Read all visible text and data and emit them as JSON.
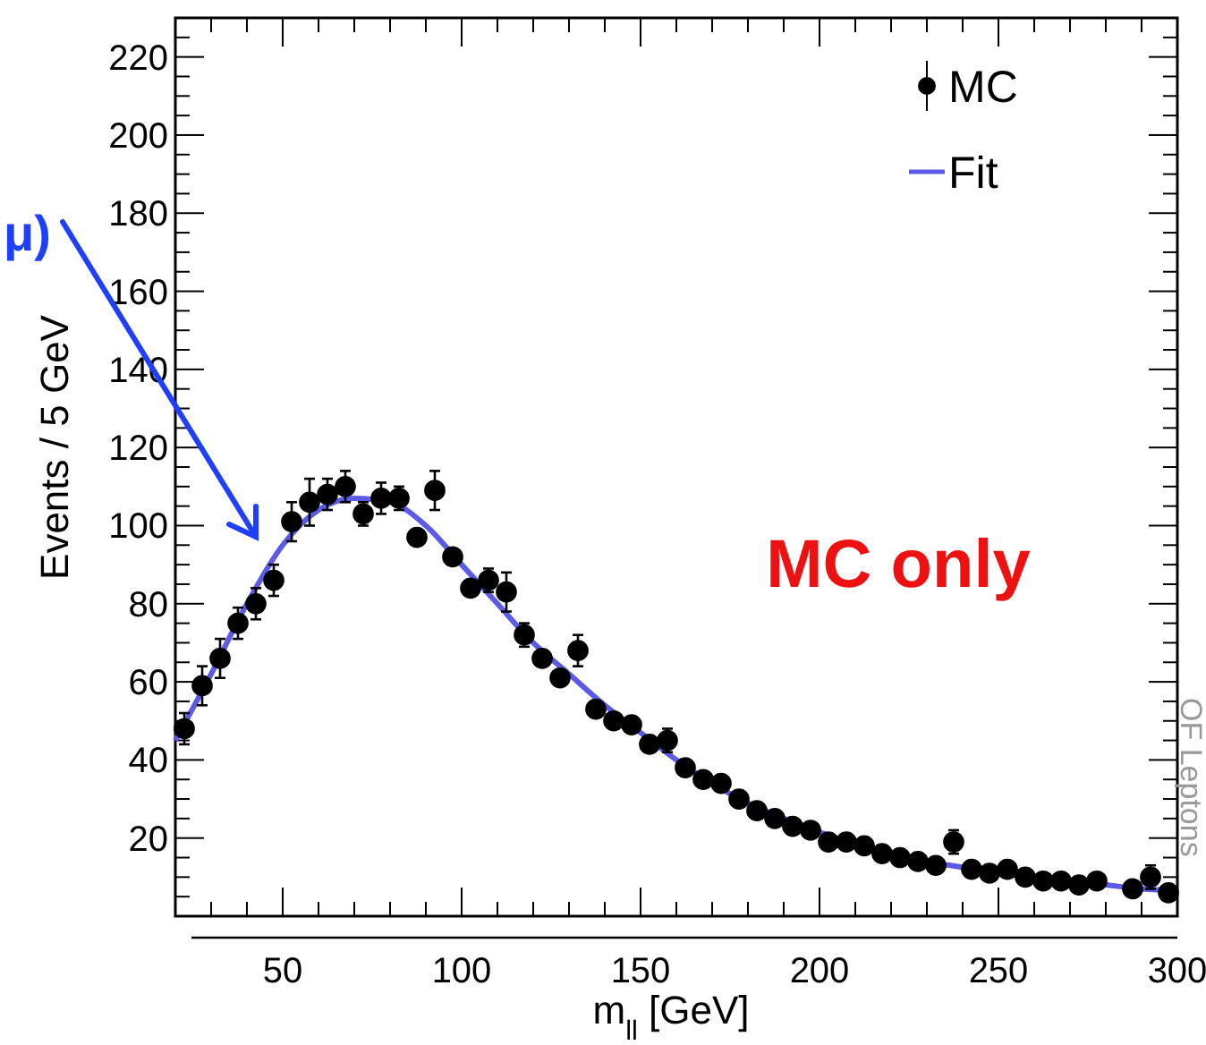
{
  "chart_data": {
    "type": "scatter",
    "xlabel": "m$_{ll}$ [GeV]",
    "ylabel": "Events / 5 GeV",
    "annotations": [
      "MC only",
      "OF Leptons",
      "μ)"
    ],
    "xlim": [
      20,
      300
    ],
    "ylim": [
      0,
      230
    ],
    "xticks": [
      {
        "value": 20,
        "label": null
      },
      {
        "value": 30,
        "label": null
      },
      {
        "value": 40,
        "label": null
      },
      50,
      {
        "value": 60,
        "label": null
      },
      {
        "value": 70,
        "label": null
      },
      {
        "value": 80,
        "label": null
      },
      {
        "value": 90,
        "label": null
      },
      100,
      {
        "value": 110,
        "label": null
      },
      {
        "value": 120,
        "label": null
      },
      {
        "value": 130,
        "label": null
      },
      {
        "value": 140,
        "label": null
      },
      150,
      {
        "value": 160,
        "label": null
      },
      {
        "value": 170,
        "label": null
      },
      {
        "value": 180,
        "label": null
      },
      {
        "value": 190,
        "label": null
      },
      200,
      {
        "value": 210,
        "label": null
      },
      {
        "value": 220,
        "label": null
      },
      {
        "value": 230,
        "label": null
      },
      {
        "value": 240,
        "label": null
      },
      250,
      {
        "value": 260,
        "label": null
      },
      {
        "value": 270,
        "label": null
      },
      {
        "value": 280,
        "label": null
      },
      {
        "value": 290,
        "label": null
      },
      300
    ],
    "yticks": [
      {
        "value": 5,
        "label": null
      },
      {
        "value": 10,
        "label": null
      },
      {
        "value": 15,
        "label": null
      },
      20,
      {
        "value": 25,
        "label": null
      },
      {
        "value": 30,
        "label": null
      },
      {
        "value": 35,
        "label": null
      },
      40,
      {
        "value": 45,
        "label": null
      },
      {
        "value": 50,
        "label": null
      },
      {
        "value": 55,
        "label": null
      },
      60,
      {
        "value": 65,
        "label": null
      },
      {
        "value": 70,
        "label": null
      },
      {
        "value": 75,
        "label": null
      },
      80,
      {
        "value": 85,
        "label": null
      },
      {
        "value": 90,
        "label": null
      },
      {
        "value": 95,
        "label": null
      },
      100,
      {
        "value": 105,
        "label": null
      },
      {
        "value": 110,
        "label": null
      },
      {
        "value": 115,
        "label": null
      },
      120,
      {
        "value": 125,
        "label": null
      },
      {
        "value": 130,
        "label": null
      },
      {
        "value": 135,
        "label": null
      },
      140,
      {
        "value": 145,
        "label": null
      },
      {
        "value": 150,
        "label": null
      },
      {
        "value": 155,
        "label": null
      },
      160,
      {
        "value": 165,
        "label": null
      },
      {
        "value": 170,
        "label": null
      },
      {
        "value": 175,
        "label": null
      },
      180,
      {
        "value": 185,
        "label": null
      },
      {
        "value": 190,
        "label": null
      },
      {
        "value": 195,
        "label": null
      },
      200,
      {
        "value": 205,
        "label": null
      },
      {
        "value": 210,
        "label": null
      },
      {
        "value": 215,
        "label": null
      },
      220,
      {
        "value": 225,
        "label": null
      }
    ],
    "legend": "top right",
    "grid": false,
    "series": [
      {
        "name": "MC",
        "marker": "circle",
        "color": "#000000",
        "x": [
          22.5,
          27.5,
          32.5,
          37.5,
          42.5,
          47.5,
          52.5,
          57.5,
          62.5,
          67.5,
          72.5,
          77.5,
          82.5,
          87.5,
          92.5,
          97.5,
          102.5,
          107.5,
          112.5,
          117.5,
          122.5,
          127.5,
          132.5,
          137.5,
          142.5,
          147.5,
          152.5,
          157.5,
          162.5,
          167.5,
          172.5,
          177.5,
          182.5,
          187.5,
          192.5,
          197.5,
          202.5,
          207.5,
          212.5,
          217.5,
          222.5,
          227.5,
          232.5,
          237.5,
          242.5,
          247.5,
          252.5,
          257.5,
          262.5,
          267.5,
          272.5,
          277.5,
          287.5,
          292.5,
          297.5
        ],
        "values": [
          48,
          59,
          66,
          75,
          80,
          86,
          101,
          106,
          108,
          110,
          103,
          107,
          107,
          97,
          109,
          92,
          84,
          86,
          83,
          72,
          66,
          61,
          68,
          53,
          50,
          49,
          44,
          45,
          38,
          35,
          34,
          30,
          27,
          25,
          23,
          22,
          19,
          19,
          18,
          16,
          15,
          14,
          13,
          19,
          12,
          11,
          12,
          10,
          9,
          9,
          8,
          9,
          7,
          10,
          6
        ],
        "errors": [
          4,
          5,
          5,
          4,
          4,
          4,
          5,
          6,
          4,
          4,
          3,
          4,
          3,
          2,
          5,
          2,
          2,
          3,
          5,
          3,
          2,
          2,
          4,
          2,
          2,
          2,
          2,
          3,
          2,
          2,
          2,
          2,
          2,
          2,
          2,
          2,
          2,
          2,
          2,
          2,
          2,
          2,
          2,
          3,
          2,
          2,
          2,
          2,
          2,
          2,
          2,
          2,
          2,
          3,
          2
        ]
      },
      {
        "name": "Fit",
        "type": "line",
        "color": "#5b5be6",
        "line_style": "solid",
        "marker": "none",
        "x": [
          20,
          30,
          40,
          50,
          60,
          70,
          80,
          90,
          100,
          110,
          120,
          130,
          140,
          150,
          160,
          170,
          180,
          190,
          200,
          210,
          220,
          230,
          240,
          250,
          260,
          270,
          280,
          290,
          300
        ],
        "values": [
          45,
          62,
          80,
          95,
          104,
          107,
          106,
          100,
          90,
          80,
          70,
          62,
          54,
          47,
          40,
          34,
          29,
          25,
          21.5,
          18.5,
          16,
          14,
          12.5,
          11,
          10,
          9,
          8,
          7,
          6.5
        ]
      }
    ]
  }
}
